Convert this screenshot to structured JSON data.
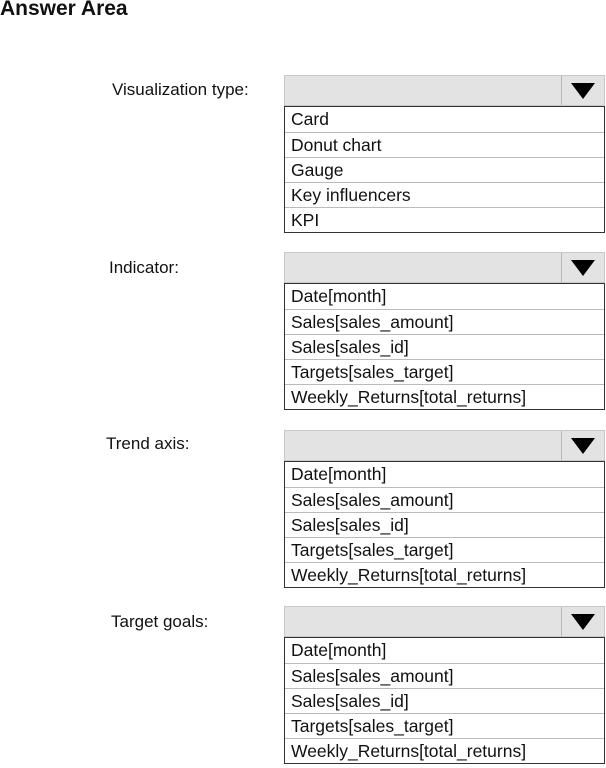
{
  "title": "Answer Area",
  "dropdowns": [
    {
      "label": "Visualization type:",
      "selected": "",
      "options": [
        "Card",
        "Donut chart",
        "Gauge",
        "Key influencers",
        "KPI"
      ]
    },
    {
      "label": "Indicator:",
      "selected": "",
      "options": [
        "Date[month]",
        "Sales[sales_amount]",
        "Sales[sales_id]",
        "Targets[sales_target]",
        "Weekly_Returns[total_returns]"
      ]
    },
    {
      "label": "Trend axis:",
      "selected": "",
      "options": [
        "Date[month]",
        "Sales[sales_amount]",
        "Sales[sales_id]",
        "Targets[sales_target]",
        "Weekly_Returns[total_returns]"
      ]
    },
    {
      "label": "Target goals:",
      "selected": "",
      "options": [
        "Date[month]",
        "Sales[sales_amount]",
        "Sales[sales_id]",
        "Targets[sales_target]",
        "Weekly_Returns[total_returns]"
      ]
    }
  ],
  "icons": {
    "dropdown": "triangle-down-icon"
  }
}
